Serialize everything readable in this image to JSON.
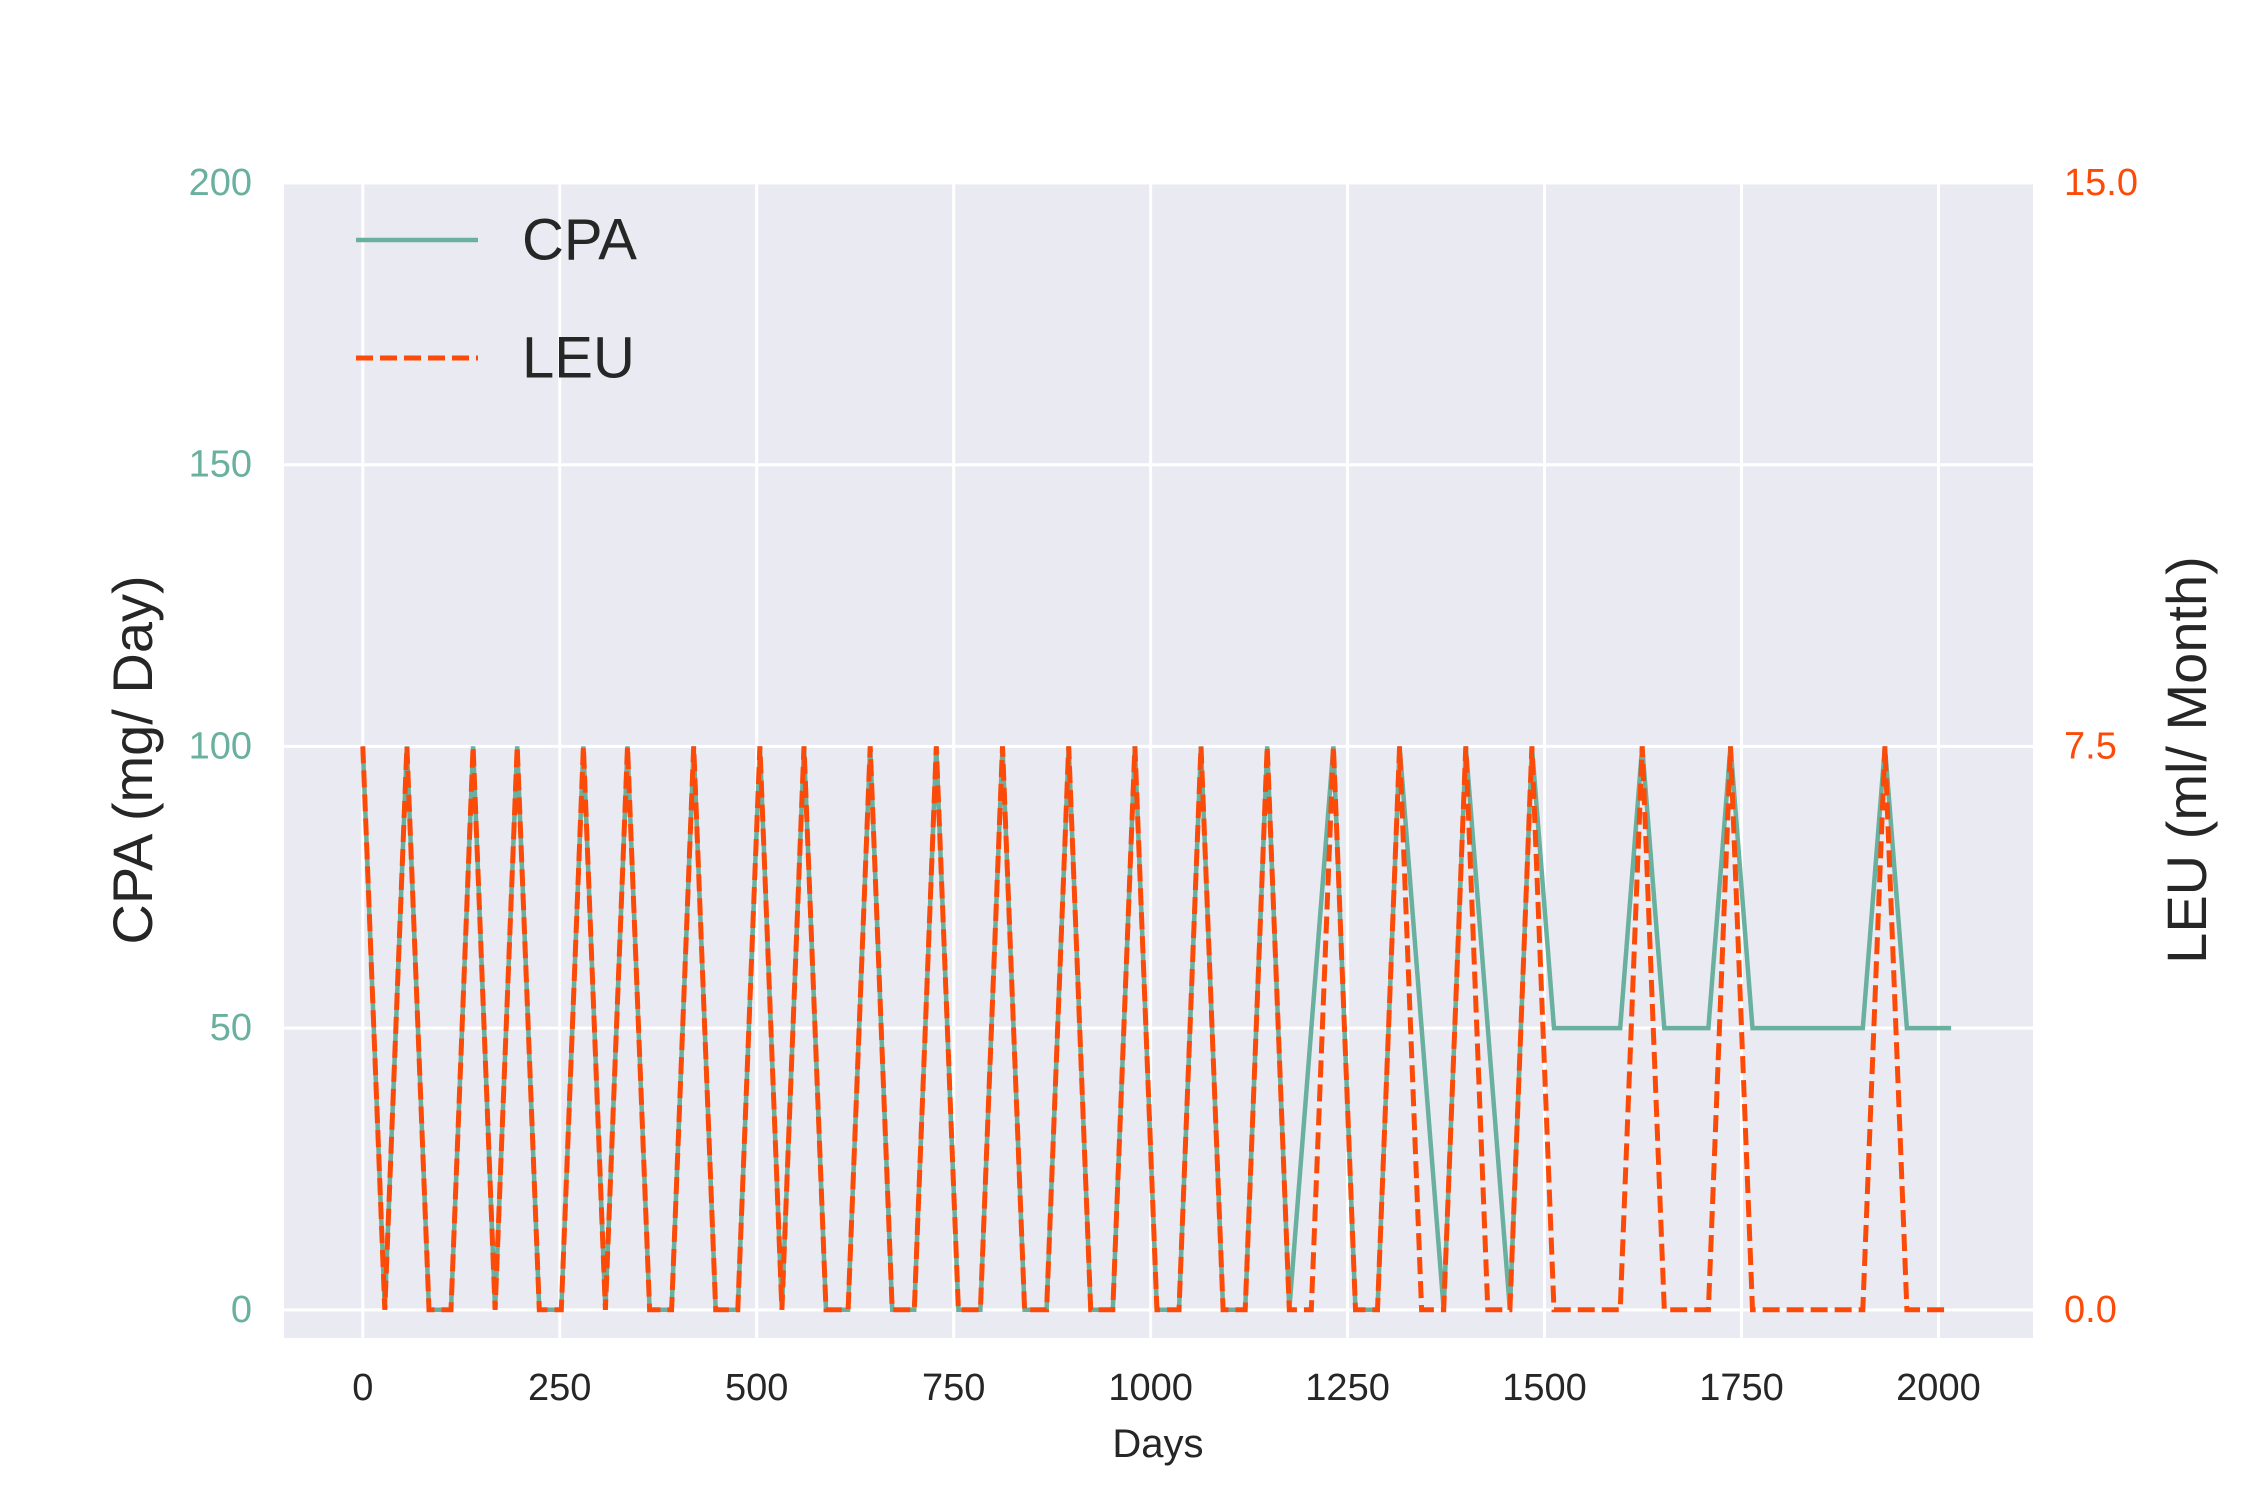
{
  "chart_data": {
    "type": "line",
    "xlabel": "Days",
    "ylabel_left": "CPA (mg/ Day)",
    "ylabel_right": "LEU (ml/ Month)",
    "xlim": [
      -100,
      2120
    ],
    "ylim_left": [
      -5,
      200
    ],
    "ylim_right": [
      0,
      15
    ],
    "x_ticks": [
      0,
      250,
      500,
      750,
      1000,
      1250,
      1500,
      1750,
      2000
    ],
    "y_ticks_left": [
      0,
      50,
      100,
      150,
      200
    ],
    "y_ticks_right": [
      0.0,
      7.5,
      15.0
    ],
    "grid": true,
    "legend_position": "top-left",
    "background_color": "#eaeaf2",
    "grid_color": "#ffffff",
    "series": [
      {
        "name": "CPA",
        "axis": "left",
        "color": "#6ab09e",
        "style": "solid",
        "x": [
          0,
          28,
          56,
          84,
          112,
          140,
          168,
          196,
          224,
          252,
          280,
          308,
          336,
          364,
          392,
          420,
          448,
          476,
          504,
          532,
          560,
          588,
          616,
          644,
          672,
          700,
          728,
          756,
          784,
          812,
          840,
          868,
          896,
          924,
          952,
          980,
          1008,
          1036,
          1064,
          1092,
          1120,
          1148,
          1176,
          1232,
          1260,
          1288,
          1316,
          1344,
          1372,
          1400,
          1428,
          1456,
          1484,
          1512,
          1540,
          1568,
          1596,
          1624,
          1652,
          1680,
          1708,
          1736,
          1764,
          1792,
          1820,
          1848,
          1876,
          1904,
          1932,
          1960,
          1988,
          2016
        ],
        "y": [
          100,
          0,
          100,
          0,
          0,
          100,
          0,
          100,
          0,
          0,
          100,
          0,
          100,
          0,
          0,
          100,
          0,
          0,
          100,
          0,
          100,
          0,
          0,
          100,
          0,
          0,
          100,
          0,
          0,
          100,
          0,
          0,
          100,
          0,
          0,
          100,
          0,
          0,
          100,
          0,
          0,
          100,
          0,
          100,
          0,
          0,
          100,
          50,
          0,
          100,
          50,
          0,
          100,
          50,
          50,
          50,
          50,
          100,
          50,
          50,
          50,
          100,
          50,
          50,
          50,
          50,
          50,
          50,
          100,
          50,
          50,
          50
        ]
      },
      {
        "name": "LEU",
        "axis": "right",
        "color": "#fc4b08",
        "style": "dashed",
        "x": [
          0,
          28,
          56,
          84,
          112,
          140,
          168,
          196,
          224,
          252,
          280,
          308,
          336,
          364,
          392,
          420,
          448,
          476,
          504,
          532,
          560,
          588,
          616,
          644,
          672,
          700,
          728,
          756,
          784,
          812,
          840,
          868,
          896,
          924,
          952,
          980,
          1008,
          1036,
          1064,
          1092,
          1120,
          1148,
          1176,
          1204,
          1232,
          1260,
          1288,
          1316,
          1344,
          1372,
          1400,
          1428,
          1456,
          1484,
          1512,
          1540,
          1568,
          1596,
          1624,
          1652,
          1680,
          1708,
          1736,
          1764,
          1792,
          1820,
          1848,
          1876,
          1904,
          1932,
          1960,
          1988,
          2016
        ],
        "y": [
          7.5,
          0,
          7.5,
          0,
          0,
          7.5,
          0,
          7.5,
          0,
          0,
          7.5,
          0,
          7.5,
          0,
          0,
          7.5,
          0,
          0,
          7.5,
          0,
          7.5,
          0,
          0,
          7.5,
          0,
          0,
          7.5,
          0,
          0,
          7.5,
          0,
          0,
          7.5,
          0,
          0,
          7.5,
          0,
          0,
          7.5,
          0,
          0,
          7.5,
          0,
          0,
          7.5,
          0,
          0,
          7.5,
          0,
          0,
          7.5,
          0,
          0,
          7.5,
          0,
          0,
          0,
          0,
          7.5,
          0,
          0,
          0,
          7.5,
          0,
          0,
          0,
          0,
          0,
          0,
          7.5,
          0,
          0,
          0
        ]
      }
    ]
  }
}
